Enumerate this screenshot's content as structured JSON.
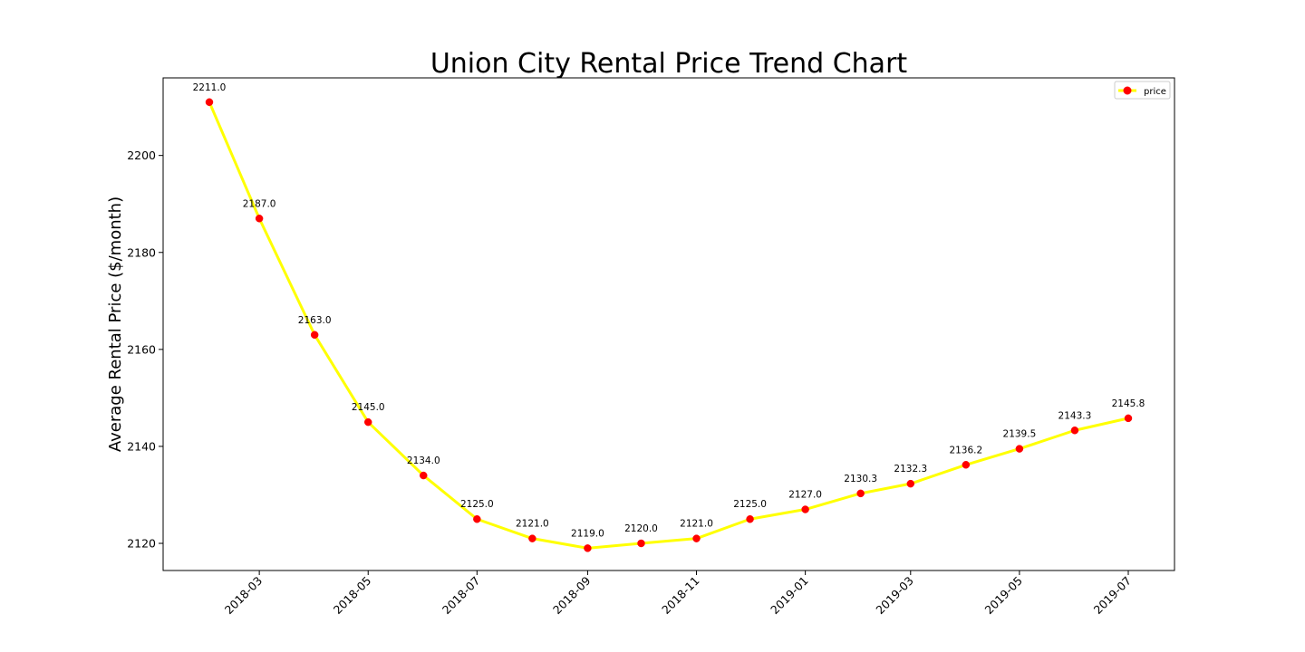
{
  "chart_data": {
    "type": "line",
    "title": "Union City Rental Price Trend Chart",
    "xlabel": "",
    "ylabel": "Average Rental Price ($/month)",
    "x": [
      "2018-02",
      "2018-03",
      "2018-04",
      "2018-05",
      "2018-06",
      "2018-07",
      "2018-08",
      "2018-09",
      "2018-10",
      "2018-11",
      "2018-12",
      "2019-01",
      "2019-02",
      "2019-03",
      "2019-04",
      "2019-05",
      "2019-06",
      "2019-07"
    ],
    "series": [
      {
        "name": "price",
        "values": [
          2211.0,
          2187.0,
          2163.0,
          2145.0,
          2134.0,
          2125.0,
          2121.0,
          2119.0,
          2120.0,
          2121.0,
          2125.0,
          2127.0,
          2130.3,
          2132.3,
          2136.2,
          2139.5,
          2143.3,
          2145.8
        ],
        "labels": [
          "2211.0",
          "2187.0",
          "2163.0",
          "2145.0",
          "2134.0",
          "2125.0",
          "2121.0",
          "2119.0",
          "2120.0",
          "2121.0",
          "2125.0",
          "2127.0",
          "2130.3",
          "2132.3",
          "2136.2",
          "2139.5",
          "2143.3",
          "2145.8"
        ],
        "line_color": "#ffff00",
        "marker_color": "#ff0000"
      }
    ],
    "x_ticks": [
      "2018-03",
      "2018-05",
      "2018-07",
      "2018-09",
      "2018-11",
      "2019-01",
      "2019-03",
      "2019-05",
      "2019-07"
    ],
    "y_ticks": [
      2120,
      2140,
      2160,
      2180,
      2200
    ],
    "ylim": [
      2114.4,
      2216.0
    ],
    "legend": "top-right",
    "grid": false
  }
}
